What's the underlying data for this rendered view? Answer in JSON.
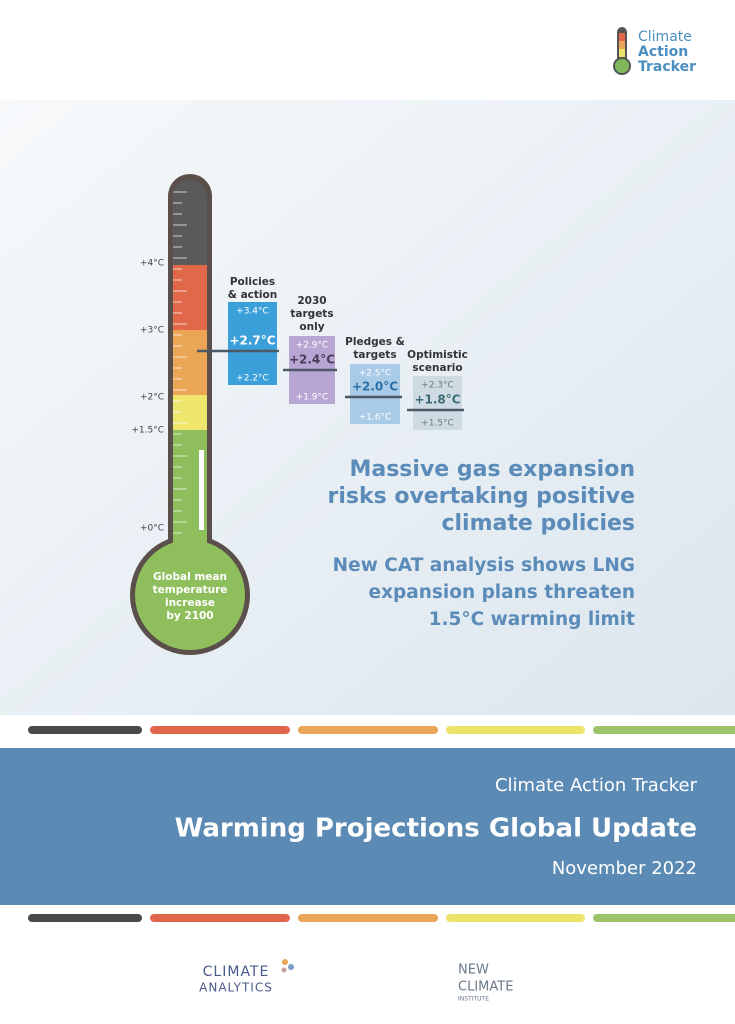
{
  "logo": {
    "lines": [
      "Climate",
      "Action",
      "Tracker"
    ]
  },
  "thermometer": {
    "ticks": [
      "+4°C",
      "+3°C",
      "+2°C",
      "+1.5°C",
      "+0°C"
    ],
    "bulb_label": [
      "Global mean",
      "temperature",
      "increase",
      "by 2100"
    ]
  },
  "scenarios": [
    {
      "label": [
        "Policies",
        "& action"
      ],
      "high": "+3.4°C",
      "mid": "+2.7°C",
      "low": "+2.2°C"
    },
    {
      "label": [
        "2030",
        "targets",
        "only"
      ],
      "high": "+2.9°C",
      "mid": "+2.4°C",
      "low": "+1.9°C"
    },
    {
      "label": [
        "Pledges &",
        "targets"
      ],
      "high": "+2.5°C",
      "mid": "+2.0°C",
      "low": "+1.6°C"
    },
    {
      "label": [
        "Optimistic",
        "scenario"
      ],
      "high": "+2.3°C",
      "mid": "+1.8°C",
      "low": "+1.5°C"
    }
  ],
  "headline": [
    "Massive gas expansion",
    "risks overtaking positive",
    "climate policies"
  ],
  "subheadline": [
    "New CAT analysis shows LNG",
    "expansion plans threaten",
    "1.5°C warming limit"
  ],
  "banner": {
    "org": "Climate Action Tracker",
    "title": "Warming Projections Global Update",
    "date": "November 2022"
  },
  "footer": {
    "climate_analytics": [
      "CLIMATE",
      "ANALYTICS"
    ],
    "new_climate": [
      "NEW",
      "CLIMATE",
      "INSTITUTE"
    ]
  }
}
